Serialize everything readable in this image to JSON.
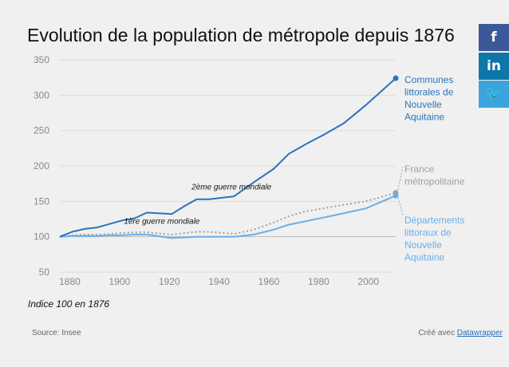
{
  "page": {
    "note": "Indice 100 en 1876",
    "source": "Source: Insee",
    "credit_prefix": "Créé avec ",
    "credit_link": "Datawrapper"
  },
  "social": [
    {
      "name": "facebook-icon",
      "glyph": "f"
    },
    {
      "name": "linkedin-icon",
      "glyph": "in"
    },
    {
      "name": "twitter-icon",
      "glyph": "🐦"
    }
  ],
  "chart_data": {
    "type": "line",
    "title": "Evolution de la population de métropole depuis 1876",
    "xlabel": "",
    "ylabel": "",
    "xlim": [
      1876,
      2011
    ],
    "ylim": [
      50,
      350
    ],
    "x_ticks": [
      1880,
      1900,
      1920,
      1940,
      1960,
      1980,
      2000
    ],
    "y_ticks": [
      50,
      100,
      150,
      200,
      250,
      300,
      350
    ],
    "grid": true,
    "series": [
      {
        "name": "Communes littorales de Nouvelle Aquitaine",
        "label_lines": [
          "Communes",
          "littorales de",
          "Nouvelle",
          "Aquitaine"
        ],
        "color": "#2a74bb",
        "style": "solid",
        "x": [
          1876,
          1881,
          1886,
          1891,
          1896,
          1901,
          1906,
          1911,
          1921,
          1926,
          1931,
          1936,
          1946,
          1954,
          1962,
          1968,
          1975,
          1982,
          1990,
          1999,
          2011
        ],
        "y": [
          100,
          107,
          111,
          113,
          118,
          123,
          126,
          134,
          132,
          143,
          153,
          153,
          157,
          177,
          196,
          217,
          231,
          244,
          260,
          286,
          324
        ]
      },
      {
        "name": "France métropolitaine",
        "label_lines": [
          "France",
          "métropolitaine"
        ],
        "color": "#a0a0a0",
        "style": "dotted",
        "x": [
          1876,
          1881,
          1886,
          1891,
          1896,
          1901,
          1906,
          1911,
          1921,
          1926,
          1931,
          1936,
          1946,
          1954,
          1962,
          1968,
          1975,
          1982,
          1990,
          1999,
          2011
        ],
        "y": [
          100,
          102,
          103,
          103,
          104,
          105,
          106,
          106,
          103,
          105,
          107,
          107,
          104,
          110,
          120,
          129,
          136,
          140,
          145,
          150,
          162
        ]
      },
      {
        "name": "Départements littoraux de Nouvelle Aquitaine",
        "label_lines": [
          "Départements",
          "littoraux de",
          "Nouvelle",
          "Aquitaine"
        ],
        "color": "#6aaee6",
        "style": "solid",
        "x": [
          1876,
          1881,
          1886,
          1891,
          1896,
          1901,
          1906,
          1911,
          1921,
          1926,
          1931,
          1936,
          1946,
          1954,
          1962,
          1968,
          1975,
          1982,
          1990,
          1999,
          2011
        ],
        "y": [
          100,
          101,
          101,
          101,
          102,
          102,
          103,
          103,
          98,
          99,
          100,
          100,
          100,
          103,
          110,
          117,
          122,
          127,
          133,
          140,
          158
        ]
      }
    ],
    "annotations": [
      {
        "text": "1ère guerre mondiale",
        "x": 1917,
        "y": 118
      },
      {
        "text": "2ème guerre mondiale",
        "x": 1945,
        "y": 167
      }
    ]
  }
}
